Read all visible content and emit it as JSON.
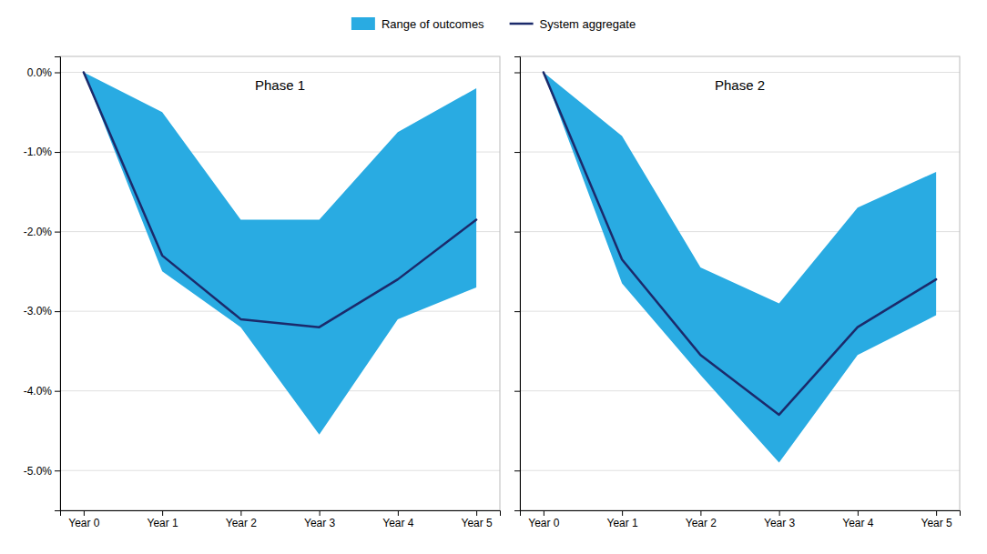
{
  "chart_data": [
    {
      "type": "line",
      "title": "Phase 1",
      "legend": "top",
      "grid": true,
      "x": [
        0,
        1,
        2,
        3,
        4,
        5
      ],
      "xlim": [
        -0.3,
        5.3
      ],
      "xticks": [
        {
          "value": 0,
          "label": "Year 0"
        },
        {
          "value": 1,
          "label": "Year 1"
        },
        {
          "value": 2,
          "label": "Year 2"
        },
        {
          "value": 3,
          "label": "Year 3"
        },
        {
          "value": 4,
          "label": "Year 4"
        },
        {
          "value": 5,
          "label": "Year 5"
        }
      ],
      "ylim": [
        -5.5,
        0.2
      ],
      "yticks": [
        {
          "value": 0.0,
          "label": "0.0%"
        },
        {
          "value": -1.0,
          "label": "-1.0%"
        },
        {
          "value": -2.0,
          "label": "-2.0%"
        },
        {
          "value": -3.0,
          "label": "-3.0%"
        },
        {
          "value": -4.0,
          "label": "-4.0%"
        },
        {
          "value": -5.0,
          "label": "-5.0%"
        }
      ],
      "series": [
        {
          "name": "Range of outcomes",
          "type": "area",
          "color": "#29ABE2",
          "upper": [
            0.0,
            -0.5,
            -1.85,
            -1.85,
            -0.75,
            -0.2
          ],
          "lower": [
            0.0,
            -2.5,
            -3.2,
            -4.55,
            -3.1,
            -2.7
          ]
        },
        {
          "name": "System aggregate",
          "type": "line",
          "color": "#1B2A6B",
          "values": [
            0.0,
            -2.3,
            -3.1,
            -3.2,
            -2.6,
            -1.85
          ]
        }
      ]
    },
    {
      "type": "line",
      "title": "Phase 2",
      "grid": true,
      "tick_labels": "x",
      "x": [
        0,
        1,
        2,
        3,
        4,
        5
      ],
      "xlim": [
        -0.3,
        5.3
      ],
      "xticks": [
        {
          "value": 0,
          "label": "Year 0"
        },
        {
          "value": 1,
          "label": "Year 1"
        },
        {
          "value": 2,
          "label": "Year 2"
        },
        {
          "value": 3,
          "label": "Year 3"
        },
        {
          "value": 4,
          "label": "Year 4"
        },
        {
          "value": 5,
          "label": "Year 5"
        }
      ],
      "ylim": [
        -5.5,
        0.2
      ],
      "yticks": [
        0.0,
        -1.0,
        -2.0,
        -3.0,
        -4.0,
        -5.0
      ],
      "series": [
        {
          "type": "area",
          "color": "#29ABE2",
          "upper": [
            0.0,
            -0.8,
            -2.45,
            -2.9,
            -1.7,
            -1.25
          ],
          "lower": [
            0.0,
            -2.65,
            -3.8,
            -4.9,
            -3.55,
            -3.05
          ]
        },
        {
          "type": "line",
          "color": "#1B2A6B",
          "values": [
            0.0,
            -2.35,
            -3.55,
            -4.3,
            -3.2,
            -2.6
          ]
        }
      ]
    }
  ]
}
